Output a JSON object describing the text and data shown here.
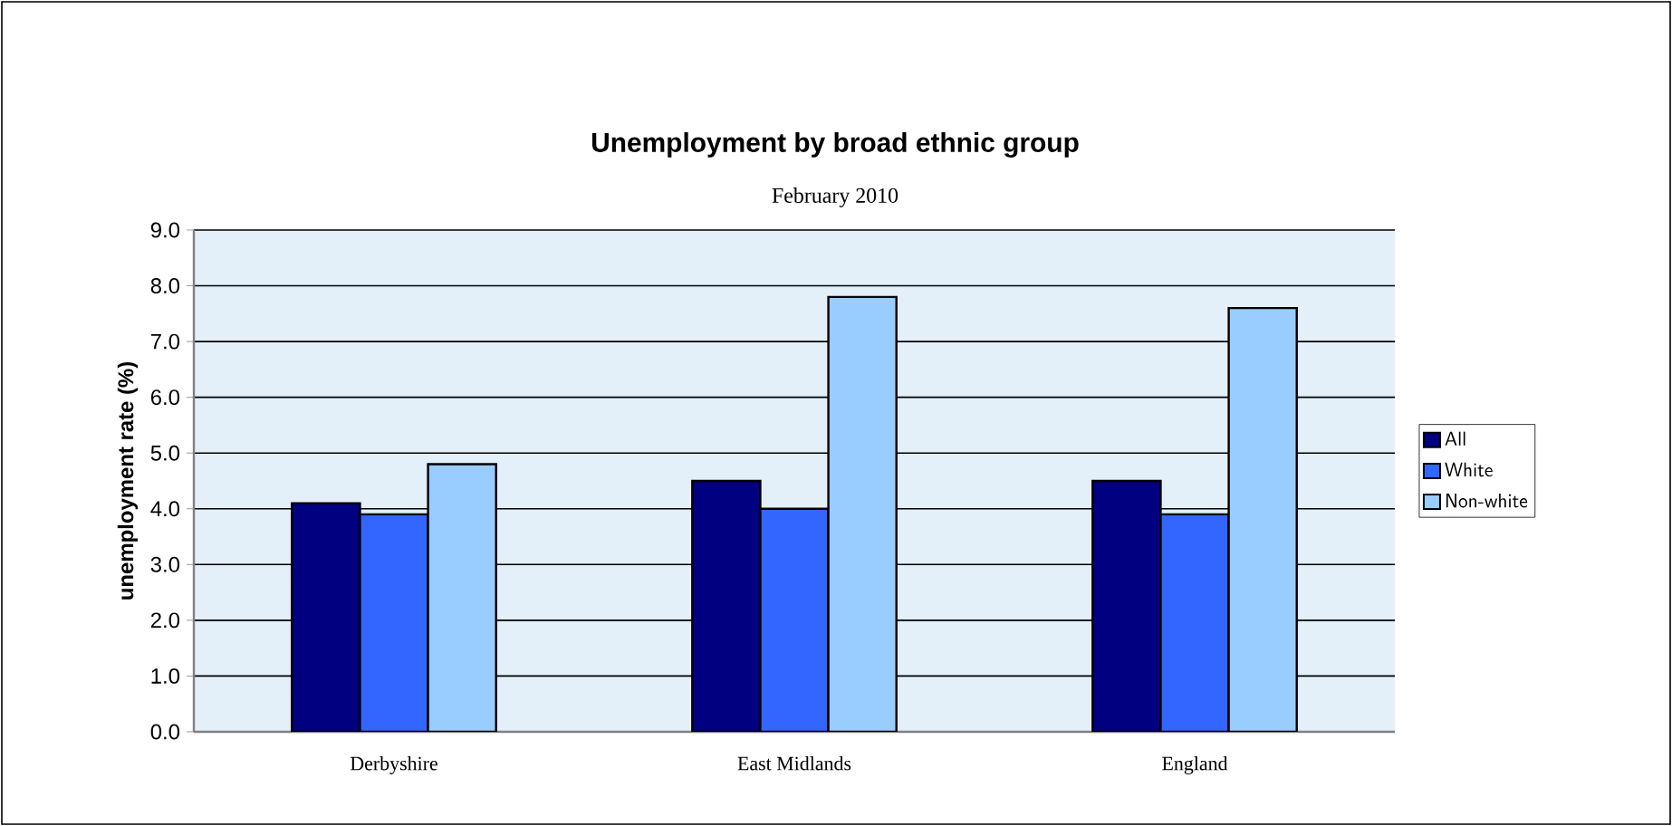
{
  "chart_data": {
    "type": "bar",
    "title": "Unemployment by broad ethnic group",
    "subtitle": "February  2010",
    "ylabel": "unemployment rate (%)",
    "categories": [
      "Derbyshire",
      "East Midlands",
      "England"
    ],
    "series": [
      {
        "name": "All",
        "color": "#000080",
        "values": [
          4.1,
          4.5,
          4.5
        ]
      },
      {
        "name": "White",
        "color": "#3366ff",
        "values": [
          3.9,
          4.0,
          3.9
        ]
      },
      {
        "name": "Non-white",
        "color": "#99ccff",
        "values": [
          4.8,
          7.8,
          7.6
        ]
      }
    ],
    "ylim": [
      0,
      9
    ],
    "yticks": [
      {
        "value": 0,
        "label": "0.0"
      },
      {
        "value": 1,
        "label": "1.0"
      },
      {
        "value": 2,
        "label": "2.0"
      },
      {
        "value": 3,
        "label": "3.0"
      },
      {
        "value": 4,
        "label": "4.0"
      },
      {
        "value": 5,
        "label": "5.0"
      },
      {
        "value": 6,
        "label": "6.0"
      },
      {
        "value": 7,
        "label": "7.0"
      },
      {
        "value": 8,
        "label": "8.0"
      },
      {
        "value": 9,
        "label": "9.0"
      }
    ],
    "grid": "y",
    "legend": "right"
  }
}
